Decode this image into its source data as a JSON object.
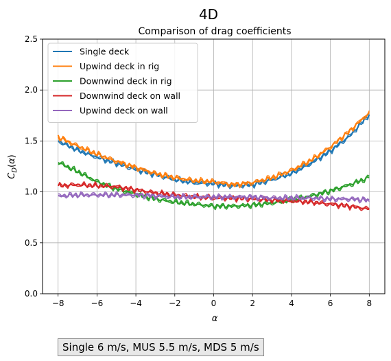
{
  "figure": {
    "suptitle": "4D",
    "note": "Single 6 m/s, MUS 5.5 m/s, MDS 5 m/s"
  },
  "chart_data": {
    "type": "line",
    "title": "Comparison of drag coefficients",
    "xlabel": "α",
    "ylabel": "C_D(α)",
    "xlim": [
      -8.8,
      8.8
    ],
    "ylim": [
      0.0,
      2.5
    ],
    "xticks": [
      -8,
      -6,
      -4,
      -2,
      0,
      2,
      4,
      6,
      8
    ],
    "yticks": [
      0.0,
      0.5,
      1.0,
      1.5,
      2.0,
      2.5
    ],
    "grid": true,
    "legend_position": "upper-left",
    "x": [
      -8,
      -7,
      -6,
      -5,
      -4,
      -3,
      -2,
      -1,
      0,
      1,
      2,
      3,
      4,
      5,
      6,
      7,
      8
    ],
    "series": [
      {
        "name": "Single deck",
        "color": "#1f77b4",
        "values": [
          1.5,
          1.41,
          1.34,
          1.28,
          1.22,
          1.17,
          1.12,
          1.09,
          1.08,
          1.06,
          1.07,
          1.12,
          1.18,
          1.28,
          1.4,
          1.55,
          1.76
        ]
      },
      {
        "name": "Upwind deck in rig",
        "color": "#ff7f0e",
        "values": [
          1.54,
          1.45,
          1.37,
          1.3,
          1.24,
          1.18,
          1.14,
          1.11,
          1.1,
          1.07,
          1.09,
          1.14,
          1.21,
          1.31,
          1.44,
          1.6,
          1.78
        ]
      },
      {
        "name": "Downwind deck in rig",
        "color": "#2ca02c",
        "values": [
          1.29,
          1.2,
          1.1,
          1.03,
          0.98,
          0.93,
          0.9,
          0.88,
          0.86,
          0.86,
          0.87,
          0.89,
          0.92,
          0.96,
          1.01,
          1.07,
          1.14
        ]
      },
      {
        "name": "Downwind deck on wall",
        "color": "#d62728",
        "values": [
          1.06,
          1.07,
          1.06,
          1.05,
          1.02,
          0.99,
          0.97,
          0.95,
          0.94,
          0.94,
          0.93,
          0.92,
          0.91,
          0.9,
          0.88,
          0.86,
          0.83
        ]
      },
      {
        "name": "Upwind deck on wall",
        "color": "#9467bd",
        "values": [
          0.96,
          0.97,
          0.97,
          0.97,
          0.97,
          0.96,
          0.95,
          0.95,
          0.95,
          0.95,
          0.95,
          0.94,
          0.94,
          0.94,
          0.93,
          0.93,
          0.92
        ]
      }
    ]
  }
}
